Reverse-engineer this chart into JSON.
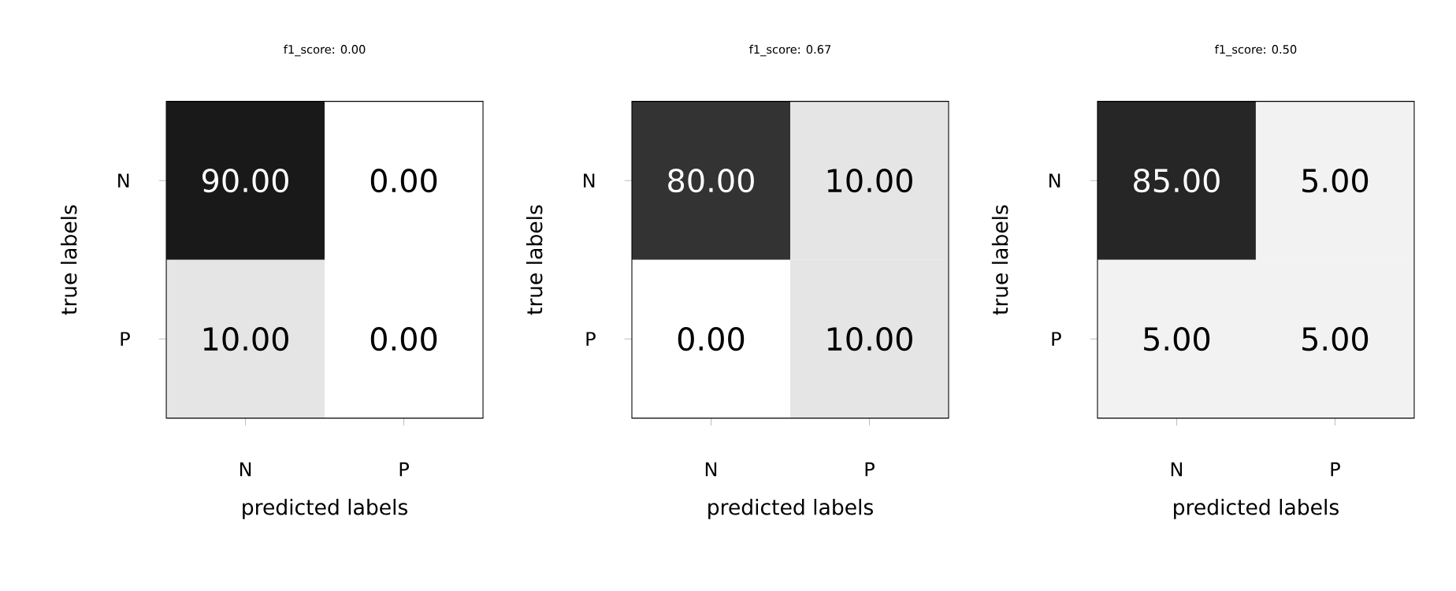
{
  "chart_data": [
    {
      "type": "heatmap",
      "title": "f1_score: 0.00",
      "xlabel": "predicted labels",
      "ylabel": "true labels",
      "categories": [
        "N",
        "P"
      ],
      "y_categories": [
        "N",
        "P"
      ],
      "cells": [
        [
          90,
          0
        ],
        [
          10,
          0
        ]
      ],
      "cell_labels": [
        [
          "90.00",
          "0.00"
        ],
        [
          "10.00",
          "0.00"
        ]
      ],
      "grid": false
    },
    {
      "type": "heatmap",
      "title": "f1_score: 0.67",
      "xlabel": "predicted labels",
      "ylabel": "true labels",
      "categories": [
        "N",
        "P"
      ],
      "y_categories": [
        "N",
        "P"
      ],
      "cells": [
        [
          80,
          10
        ],
        [
          0,
          10
        ]
      ],
      "cell_labels": [
        [
          "80.00",
          "10.00"
        ],
        [
          "0.00",
          "10.00"
        ]
      ],
      "grid": false
    },
    {
      "type": "heatmap",
      "title": "f1_score: 0.50",
      "xlabel": "predicted labels",
      "ylabel": "true labels",
      "categories": [
        "N",
        "P"
      ],
      "y_categories": [
        "N",
        "P"
      ],
      "cells": [
        [
          85,
          5
        ],
        [
          5,
          5
        ]
      ],
      "cell_labels": [
        [
          "85.00",
          "5.00"
        ],
        [
          "5.00",
          "5.00"
        ]
      ],
      "grid": false
    }
  ]
}
